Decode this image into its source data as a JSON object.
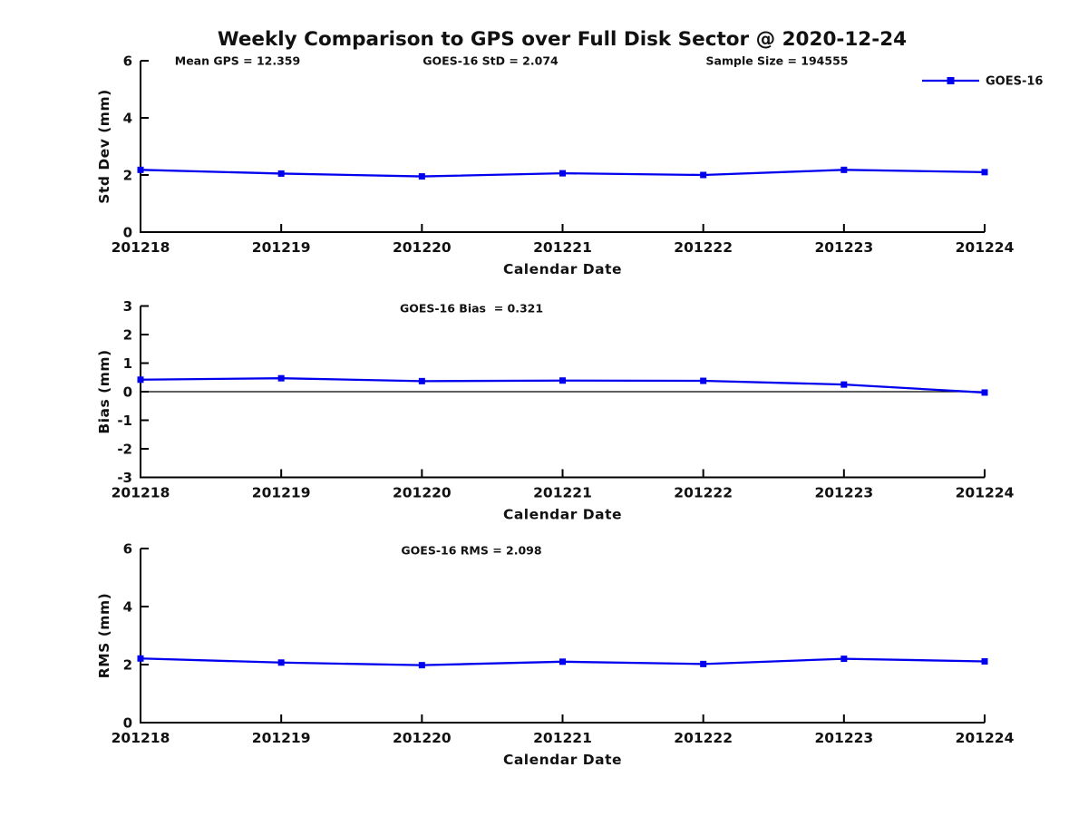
{
  "title": "Weekly Comparison to GPS over Full Disk Sector @ 2020-12-24",
  "legend": {
    "label": "GOES-16",
    "line_color": "#0000EE",
    "marker": "square"
  },
  "style": {
    "line_color": "#0000EE",
    "axis_color": "#000000",
    "text_color": "#111111"
  },
  "chart_data": [
    {
      "id": "stddev",
      "type": "line",
      "title": "",
      "ylabel": "Std Dev (mm)",
      "xlabel": "Calendar Date",
      "ylim": [
        0,
        6
      ],
      "yticks": [
        0,
        2,
        4,
        6
      ],
      "grid": false,
      "legend_position": "top-right-outside",
      "categories": [
        "201218",
        "201219",
        "201220",
        "201221",
        "201222",
        "201223",
        "201224"
      ],
      "series": [
        {
          "name": "GOES-16",
          "values": [
            2.18,
            2.05,
            1.95,
            2.06,
            2.0,
            2.18,
            2.1
          ]
        }
      ],
      "annotations": [
        "Mean GPS = 12.359",
        "GOES-16 StD = 2.074",
        "Sample Size = 194555"
      ],
      "zero_line": false
    },
    {
      "id": "bias",
      "type": "line",
      "title": "",
      "ylabel": "Bias (mm)",
      "xlabel": "Calendar Date",
      "ylim": [
        -3,
        3
      ],
      "yticks": [
        3,
        2,
        1,
        0,
        -1,
        -2,
        -3
      ],
      "grid": false,
      "categories": [
        "201218",
        "201219",
        "201220",
        "201221",
        "201222",
        "201223",
        "201224"
      ],
      "series": [
        {
          "name": "GOES-16",
          "values": [
            0.42,
            0.47,
            0.37,
            0.39,
            0.38,
            0.25,
            -0.03
          ]
        }
      ],
      "annotations": [
        "GOES-16 Bias  = 0.321"
      ],
      "zero_line": true
    },
    {
      "id": "rms",
      "type": "line",
      "title": "",
      "ylabel": "RMS (mm)",
      "xlabel": "Calendar Date",
      "ylim": [
        0,
        6
      ],
      "yticks": [
        0,
        2,
        4,
        6
      ],
      "grid": false,
      "categories": [
        "201218",
        "201219",
        "201220",
        "201221",
        "201222",
        "201223",
        "201224"
      ],
      "series": [
        {
          "name": "GOES-16",
          "values": [
            2.21,
            2.07,
            1.98,
            2.1,
            2.02,
            2.2,
            2.11
          ]
        }
      ],
      "annotations": [
        "GOES-16 RMS = 2.098"
      ],
      "zero_line": false
    }
  ]
}
